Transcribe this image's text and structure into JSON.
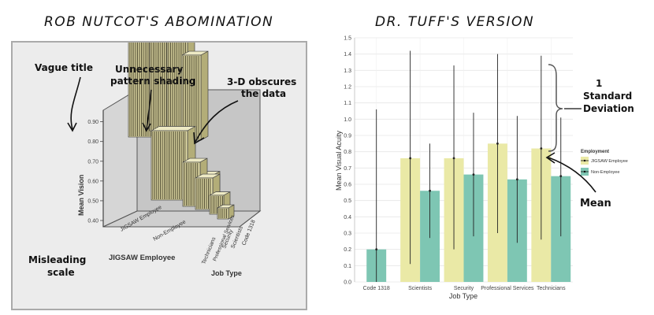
{
  "left_heading": "ROB NUTCOT'S ABOMINATION",
  "right_heading": "DR. TUFF'S VERSION",
  "left_panel": {
    "annotations": {
      "vague_title": "Vague title",
      "pattern_1": "Unnecessary",
      "pattern_2": "pattern shading",
      "obscure_1": "3-D obscures",
      "obscure_2": "the data",
      "misleading_1": "Misleading",
      "misleading_2": "scale"
    },
    "y_axis_label": "Mean Vision",
    "x_axis_title": "JIGSAW Employee",
    "depth_axis_title": "Job Type",
    "employee_labels": [
      "JIGSAW Employee",
      "Non-Employee"
    ],
    "job_labels": [
      "Code 1318",
      "Scientists",
      "Security",
      "Professional Services",
      "Technicians"
    ],
    "y_ticks": [
      "0.40",
      "0.50",
      "0.60",
      "0.70",
      "0.80",
      "0.90"
    ],
    "colors": {
      "bar_front": "#ddd7a3",
      "bar_side": "#b3ad78",
      "bar_top": "#eeeac4",
      "stripes": "#3a3620",
      "box": "#c4c4c4",
      "floor": "#d0d0d0"
    }
  },
  "annotations_right": {
    "sd_1": "1",
    "sd_2": "Standard",
    "sd_3": "Deviation",
    "mean": "Mean"
  },
  "chart_data": [
    {
      "type": "bar",
      "title": "",
      "xlabel": "Job Type",
      "ylabel": "Mean Visual Acuity",
      "categories": [
        "Code 1318",
        "Scientists",
        "Security",
        "Professional Services",
        "Technicians"
      ],
      "ylim": [
        0,
        1.5
      ],
      "y_ticks": [
        0.0,
        0.1,
        0.2,
        0.3,
        0.4,
        0.5,
        0.6,
        0.7,
        0.8,
        0.9,
        1.0,
        1.1,
        1.2,
        1.3,
        1.4,
        1.5
      ],
      "grid": true,
      "legend_title": "Employment",
      "legend_position": "right",
      "series": [
        {
          "name": "JIGSAW Employee",
          "color": "#eae9a6",
          "values": [
            null,
            0.76,
            0.76,
            0.85,
            0.82
          ],
          "error_low": [
            null,
            0.11,
            0.2,
            0.3,
            0.26
          ],
          "error_high": [
            null,
            1.42,
            1.33,
            1.4,
            1.39
          ]
        },
        {
          "name": "Non-Employee",
          "color": "#7ec6b3",
          "values": [
            0.2,
            0.56,
            0.66,
            0.63,
            0.65
          ],
          "error_low": [
            0.0,
            0.27,
            0.28,
            0.24,
            0.28
          ],
          "error_high": [
            1.06,
            0.85,
            1.04,
            1.02,
            1.01
          ]
        }
      ]
    }
  ]
}
